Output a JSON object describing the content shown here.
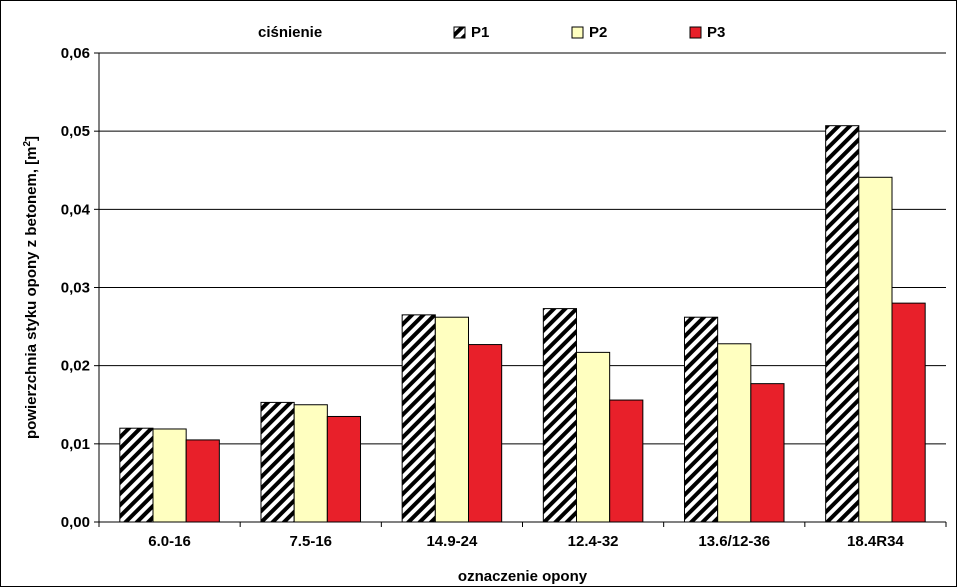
{
  "chart_data": {
    "type": "bar",
    "title": "",
    "xlabel": "oznaczenie opony",
    "ylabel": "powierzchnia styku opony z betonem, [m",
    "ylabel_superscript": "2",
    "ylabel_suffix": "]",
    "ylim": [
      0,
      0.06
    ],
    "yticks": [
      0,
      0.01,
      0.02,
      0.03,
      0.04,
      0.05,
      0.06
    ],
    "ytick_labels": [
      "0,00",
      "0,01",
      "0,02",
      "0,03",
      "0,04",
      "0,05",
      "0,06"
    ],
    "grid": true,
    "legend_position": "top",
    "legend_title": "ciśnienie",
    "categories": [
      "6.0-16",
      "7.5-16",
      "14.9-24",
      "12.4-32",
      "13.6/12-36",
      "18.4R34"
    ],
    "series": [
      {
        "name": "P1",
        "pattern": "hatch",
        "color": "#000000",
        "values": [
          0.012,
          0.0153,
          0.0265,
          0.0273,
          0.0262,
          0.0507
        ]
      },
      {
        "name": "P2",
        "pattern": "solid",
        "color": "#ffffc0",
        "values": [
          0.0119,
          0.015,
          0.0262,
          0.0217,
          0.0228,
          0.0441
        ]
      },
      {
        "name": "P3",
        "pattern": "solid",
        "color": "#e8202a",
        "values": [
          0.0105,
          0.0135,
          0.0227,
          0.0156,
          0.0177,
          0.028
        ]
      }
    ]
  }
}
